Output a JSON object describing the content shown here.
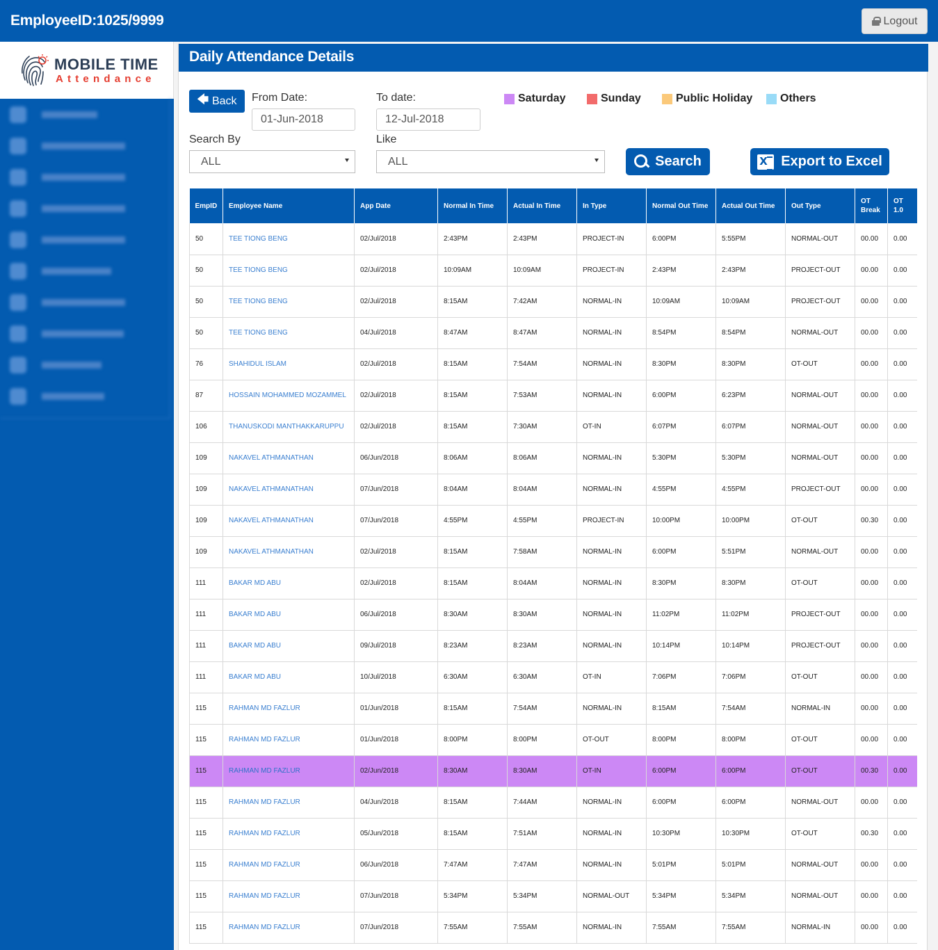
{
  "header": {
    "employee_id": "EmployeeID:1025/9999",
    "logout_label": "Logout"
  },
  "logo": {
    "main": "MOBILE TIME",
    "sub": "Attendance"
  },
  "page": {
    "title": "Daily Attendance Details"
  },
  "filters": {
    "back_label": "Back",
    "from_label": "From Date:",
    "from_value": "01-Jun-2018",
    "to_label": "To date:",
    "to_value": "12-Jul-2018",
    "search_by_label": "Search By",
    "search_by_value": "ALL",
    "like_label": "Like",
    "like_value": "ALL",
    "search_label": "Search",
    "export_label": "Export to Excel"
  },
  "legend": [
    {
      "label": "Saturday",
      "color": "#cc88f5"
    },
    {
      "label": "Sunday",
      "color": "#f26b6b"
    },
    {
      "label": "Public Holiday",
      "color": "#fbc97a"
    },
    {
      "label": "Others",
      "color": "#99dbf7"
    }
  ],
  "table": {
    "columns": [
      "EmpID",
      "Employee Name",
      "App Date",
      "Normal In Time",
      "Actual In Time",
      "In Type",
      "Normal Out Time",
      "Actual Out Time",
      "Out Type",
      "OT Break",
      "OT 1.0"
    ],
    "rows": [
      [
        "50",
        "TEE TIONG BENG",
        "02/Jul/2018",
        "2:43PM",
        "2:43PM",
        "PROJECT-IN",
        "6:00PM",
        "5:55PM",
        "NORMAL-OUT",
        "00.00",
        "0.00"
      ],
      [
        "50",
        "TEE TIONG BENG",
        "02/Jul/2018",
        "10:09AM",
        "10:09AM",
        "PROJECT-IN",
        "2:43PM",
        "2:43PM",
        "PROJECT-OUT",
        "00.00",
        "0.00"
      ],
      [
        "50",
        "TEE TIONG BENG",
        "02/Jul/2018",
        "8:15AM",
        "7:42AM",
        "NORMAL-IN",
        "10:09AM",
        "10:09AM",
        "PROJECT-OUT",
        "00.00",
        "0.00"
      ],
      [
        "50",
        "TEE TIONG BENG",
        "04/Jul/2018",
        "8:47AM",
        "8:47AM",
        "NORMAL-IN",
        "8:54PM",
        "8:54PM",
        "NORMAL-OUT",
        "00.00",
        "0.00"
      ],
      [
        "76",
        "SHAHIDUL ISLAM",
        "02/Jul/2018",
        "8:15AM",
        "7:54AM",
        "NORMAL-IN",
        "8:30PM",
        "8:30PM",
        "OT-OUT",
        "00.00",
        "0.00"
      ],
      [
        "87",
        "HOSSAIN MOHAMMED MOZAMMEL",
        "02/Jul/2018",
        "8:15AM",
        "7:53AM",
        "NORMAL-IN",
        "6:00PM",
        "6:23PM",
        "NORMAL-OUT",
        "00.00",
        "0.00"
      ],
      [
        "106",
        "THANUSKODI MANTHAKKARUPPU",
        "02/Jul/2018",
        "8:15AM",
        "7:30AM",
        "OT-IN",
        "6:07PM",
        "6:07PM",
        "NORMAL-OUT",
        "00.00",
        "0.00"
      ],
      [
        "109",
        "NAKAVEL ATHMANATHAN",
        "06/Jun/2018",
        "8:06AM",
        "8:06AM",
        "NORMAL-IN",
        "5:30PM",
        "5:30PM",
        "NORMAL-OUT",
        "00.00",
        "0.00"
      ],
      [
        "109",
        "NAKAVEL ATHMANATHAN",
        "07/Jun/2018",
        "8:04AM",
        "8:04AM",
        "NORMAL-IN",
        "4:55PM",
        "4:55PM",
        "PROJECT-OUT",
        "00.00",
        "0.00"
      ],
      [
        "109",
        "NAKAVEL ATHMANATHAN",
        "07/Jun/2018",
        "4:55PM",
        "4:55PM",
        "PROJECT-IN",
        "10:00PM",
        "10:00PM",
        "OT-OUT",
        "00.30",
        "0.00"
      ],
      [
        "109",
        "NAKAVEL ATHMANATHAN",
        "02/Jul/2018",
        "8:15AM",
        "7:58AM",
        "NORMAL-IN",
        "6:00PM",
        "5:51PM",
        "NORMAL-OUT",
        "00.00",
        "0.00"
      ],
      [
        "111",
        "BAKAR MD ABU",
        "02/Jul/2018",
        "8:15AM",
        "8:04AM",
        "NORMAL-IN",
        "8:30PM",
        "8:30PM",
        "OT-OUT",
        "00.00",
        "0.00"
      ],
      [
        "111",
        "BAKAR MD ABU",
        "06/Jul/2018",
        "8:30AM",
        "8:30AM",
        "NORMAL-IN",
        "11:02PM",
        "11:02PM",
        "PROJECT-OUT",
        "00.00",
        "0.00"
      ],
      [
        "111",
        "BAKAR MD ABU",
        "09/Jul/2018",
        "8:23AM",
        "8:23AM",
        "NORMAL-IN",
        "10:14PM",
        "10:14PM",
        "PROJECT-OUT",
        "00.00",
        "0.00"
      ],
      [
        "111",
        "BAKAR MD ABU",
        "10/Jul/2018",
        "6:30AM",
        "6:30AM",
        "OT-IN",
        "7:06PM",
        "7:06PM",
        "OT-OUT",
        "00.00",
        "0.00"
      ],
      [
        "115",
        "RAHMAN MD FAZLUR",
        "01/Jun/2018",
        "8:15AM",
        "7:54AM",
        "NORMAL-IN",
        "8:15AM",
        "7:54AM",
        "NORMAL-IN",
        "00.00",
        "0.00"
      ],
      [
        "115",
        "RAHMAN MD FAZLUR",
        "01/Jun/2018",
        "8:00PM",
        "8:00PM",
        "OT-OUT",
        "8:00PM",
        "8:00PM",
        "OT-OUT",
        "00.00",
        "0.00"
      ],
      [
        "115",
        "RAHMAN MD FAZLUR",
        "02/Jun/2018",
        "8:30AM",
        "8:30AM",
        "OT-IN",
        "6:00PM",
        "6:00PM",
        "OT-OUT",
        "00.30",
        "0.00"
      ],
      [
        "115",
        "RAHMAN MD FAZLUR",
        "04/Jun/2018",
        "8:15AM",
        "7:44AM",
        "NORMAL-IN",
        "6:00PM",
        "6:00PM",
        "NORMAL-OUT",
        "00.00",
        "0.00"
      ],
      [
        "115",
        "RAHMAN MD FAZLUR",
        "05/Jun/2018",
        "8:15AM",
        "7:51AM",
        "NORMAL-IN",
        "10:30PM",
        "10:30PM",
        "OT-OUT",
        "00.30",
        "0.00"
      ],
      [
        "115",
        "RAHMAN MD FAZLUR",
        "06/Jun/2018",
        "7:47AM",
        "7:47AM",
        "NORMAL-IN",
        "5:01PM",
        "5:01PM",
        "NORMAL-OUT",
        "00.00",
        "0.00"
      ],
      [
        "115",
        "RAHMAN MD FAZLUR",
        "07/Jun/2018",
        "5:34PM",
        "5:34PM",
        "NORMAL-OUT",
        "5:34PM",
        "5:34PM",
        "NORMAL-OUT",
        "00.00",
        "0.00"
      ],
      [
        "115",
        "RAHMAN MD FAZLUR",
        "07/Jun/2018",
        "7:55AM",
        "7:55AM",
        "NORMAL-IN",
        "7:55AM",
        "7:55AM",
        "NORMAL-IN",
        "00.00",
        "0.00"
      ]
    ],
    "highlight_rows": {
      "17": "saturday"
    }
  }
}
